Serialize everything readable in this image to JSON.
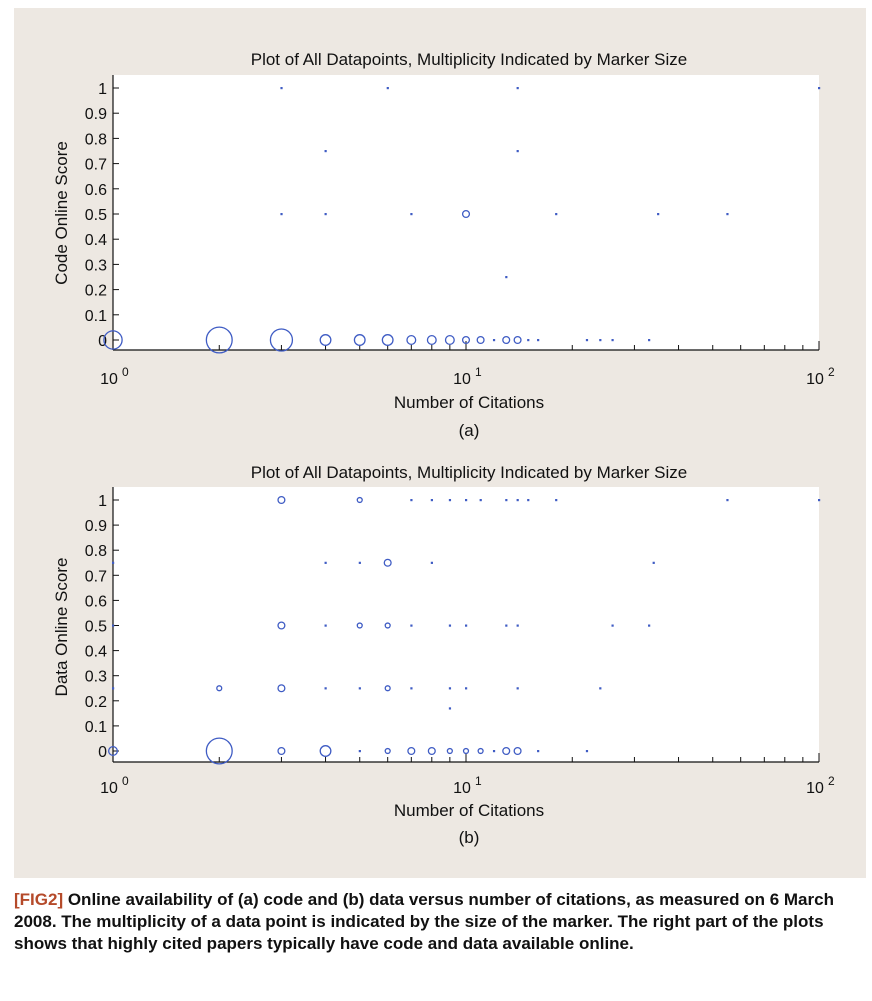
{
  "chart_data": [
    {
      "type": "scatter",
      "title": "Plot of All Datapoints, Multiplicity Indicated by Marker Size",
      "xlabel": "Number of Citations",
      "ylabel": "Code Online Score",
      "sublabel": "(a)",
      "xscale": "log",
      "xlim": [
        1,
        100
      ],
      "ylim": [
        0,
        1
      ],
      "yticks": [
        "0",
        "0.1",
        "0.2",
        "0.3",
        "0.4",
        "0.5",
        "0.6",
        "0.7",
        "0.8",
        "0.9",
        "1"
      ],
      "xticks": [
        {
          "base": "10",
          "exp": "0"
        },
        {
          "base": "10",
          "exp": "1"
        },
        {
          "base": "10",
          "exp": "2"
        }
      ],
      "grid": false,
      "marker_color": "#3f5cc4",
      "points": [
        {
          "x": 1,
          "y": 0,
          "m": 4
        },
        {
          "x": 2,
          "y": 0,
          "m": 6
        },
        {
          "x": 3,
          "y": 0,
          "m": 5
        },
        {
          "x": 4,
          "y": 0,
          "m": 2
        },
        {
          "x": 5,
          "y": 0,
          "m": 2
        },
        {
          "x": 6,
          "y": 0,
          "m": 2
        },
        {
          "x": 7,
          "y": 0,
          "m": 1.5
        },
        {
          "x": 8,
          "y": 0,
          "m": 1.5
        },
        {
          "x": 9,
          "y": 0,
          "m": 1.5
        },
        {
          "x": 10,
          "y": 0,
          "m": 1
        },
        {
          "x": 11,
          "y": 0,
          "m": 1
        },
        {
          "x": 12,
          "y": 0,
          "m": 0
        },
        {
          "x": 13,
          "y": 0,
          "m": 1
        },
        {
          "x": 14,
          "y": 0,
          "m": 1
        },
        {
          "x": 15,
          "y": 0,
          "m": 0
        },
        {
          "x": 16,
          "y": 0,
          "m": 0
        },
        {
          "x": 22,
          "y": 0,
          "m": 0
        },
        {
          "x": 24,
          "y": 0,
          "m": 0
        },
        {
          "x": 26,
          "y": 0,
          "m": 0
        },
        {
          "x": 33,
          "y": 0,
          "m": 0
        },
        {
          "x": 13,
          "y": 0.25,
          "m": 0
        },
        {
          "x": 3,
          "y": 0.5,
          "m": 0
        },
        {
          "x": 4,
          "y": 0.5,
          "m": 0
        },
        {
          "x": 7,
          "y": 0.5,
          "m": 0
        },
        {
          "x": 10,
          "y": 0.5,
          "m": 1
        },
        {
          "x": 18,
          "y": 0.5,
          "m": 0
        },
        {
          "x": 35,
          "y": 0.5,
          "m": 0
        },
        {
          "x": 55,
          "y": 0.5,
          "m": 0
        },
        {
          "x": 4,
          "y": 0.75,
          "m": 0
        },
        {
          "x": 14,
          "y": 0.75,
          "m": 0
        },
        {
          "x": 3,
          "y": 1,
          "m": 0
        },
        {
          "x": 6,
          "y": 1,
          "m": 0
        },
        {
          "x": 14,
          "y": 1,
          "m": 0
        },
        {
          "x": 100,
          "y": 1,
          "m": 0
        }
      ]
    },
    {
      "type": "scatter",
      "title": "Plot of All Datapoints, Multiplicity Indicated by Marker Size",
      "xlabel": "Number of Citations",
      "ylabel": "Data Online Score",
      "sublabel": "(b)",
      "xscale": "log",
      "xlim": [
        1,
        100
      ],
      "ylim": [
        0,
        1
      ],
      "yticks": [
        "0",
        "0.1",
        "0.2",
        "0.3",
        "0.4",
        "0.5",
        "0.6",
        "0.7",
        "0.8",
        "0.9",
        "1"
      ],
      "xticks": [
        {
          "base": "10",
          "exp": "0"
        },
        {
          "base": "10",
          "exp": "1"
        },
        {
          "base": "10",
          "exp": "2"
        }
      ],
      "grid": false,
      "marker_color": "#3f5cc4",
      "points": [
        {
          "x": 1,
          "y": 0,
          "m": 1.5
        },
        {
          "x": 2,
          "y": 0,
          "m": 6
        },
        {
          "x": 3,
          "y": 0,
          "m": 1
        },
        {
          "x": 4,
          "y": 0,
          "m": 2
        },
        {
          "x": 5,
          "y": 0,
          "m": 0
        },
        {
          "x": 6,
          "y": 0,
          "m": 0.5
        },
        {
          "x": 7,
          "y": 0,
          "m": 1
        },
        {
          "x": 8,
          "y": 0,
          "m": 1
        },
        {
          "x": 9,
          "y": 0,
          "m": 0.5
        },
        {
          "x": 10,
          "y": 0,
          "m": 0.5
        },
        {
          "x": 11,
          "y": 0,
          "m": 0.5
        },
        {
          "x": 12,
          "y": 0,
          "m": 0
        },
        {
          "x": 13,
          "y": 0,
          "m": 1
        },
        {
          "x": 14,
          "y": 0,
          "m": 1
        },
        {
          "x": 16,
          "y": 0,
          "m": 0
        },
        {
          "x": 22,
          "y": 0,
          "m": 0
        },
        {
          "x": 9,
          "y": 0.17,
          "m": 0
        },
        {
          "x": 1,
          "y": 0.25,
          "m": 0
        },
        {
          "x": 2,
          "y": 0.25,
          "m": 0.5
        },
        {
          "x": 3,
          "y": 0.25,
          "m": 1
        },
        {
          "x": 4,
          "y": 0.25,
          "m": 0
        },
        {
          "x": 5,
          "y": 0.25,
          "m": 0
        },
        {
          "x": 6,
          "y": 0.25,
          "m": 0.5
        },
        {
          "x": 7,
          "y": 0.25,
          "m": 0
        },
        {
          "x": 9,
          "y": 0.25,
          "m": 0
        },
        {
          "x": 10,
          "y": 0.25,
          "m": 0
        },
        {
          "x": 14,
          "y": 0.25,
          "m": 0
        },
        {
          "x": 24,
          "y": 0.25,
          "m": 0
        },
        {
          "x": 1,
          "y": 0.5,
          "m": 0
        },
        {
          "x": 3,
          "y": 0.5,
          "m": 1
        },
        {
          "x": 4,
          "y": 0.5,
          "m": 0
        },
        {
          "x": 5,
          "y": 0.5,
          "m": 0.5
        },
        {
          "x": 6,
          "y": 0.5,
          "m": 0.5
        },
        {
          "x": 7,
          "y": 0.5,
          "m": 0
        },
        {
          "x": 9,
          "y": 0.5,
          "m": 0
        },
        {
          "x": 10,
          "y": 0.5,
          "m": 0
        },
        {
          "x": 13,
          "y": 0.5,
          "m": 0
        },
        {
          "x": 14,
          "y": 0.5,
          "m": 0
        },
        {
          "x": 26,
          "y": 0.5,
          "m": 0
        },
        {
          "x": 33,
          "y": 0.5,
          "m": 0
        },
        {
          "x": 1,
          "y": 0.75,
          "m": 0
        },
        {
          "x": 4,
          "y": 0.75,
          "m": 0
        },
        {
          "x": 5,
          "y": 0.75,
          "m": 0
        },
        {
          "x": 6,
          "y": 0.75,
          "m": 1
        },
        {
          "x": 8,
          "y": 0.75,
          "m": 0
        },
        {
          "x": 34,
          "y": 0.75,
          "m": 0
        },
        {
          "x": 3,
          "y": 1,
          "m": 1
        },
        {
          "x": 5,
          "y": 1,
          "m": 0.5
        },
        {
          "x": 7,
          "y": 1,
          "m": 0
        },
        {
          "x": 8,
          "y": 1,
          "m": 0
        },
        {
          "x": 9,
          "y": 1,
          "m": 0
        },
        {
          "x": 10,
          "y": 1,
          "m": 0
        },
        {
          "x": 11,
          "y": 1,
          "m": 0
        },
        {
          "x": 13,
          "y": 1,
          "m": 0
        },
        {
          "x": 14,
          "y": 1,
          "m": 0
        },
        {
          "x": 15,
          "y": 1,
          "m": 0
        },
        {
          "x": 18,
          "y": 1,
          "m": 0
        },
        {
          "x": 55,
          "y": 1,
          "m": 0
        },
        {
          "x": 100,
          "y": 1,
          "m": 0
        }
      ]
    }
  ],
  "caption": {
    "tag": "[FIG2]",
    "text": " Online availability of (a) code and (b) data versus number of citations, as measured on 6 March 2008. The multiplicity of a data point is indicated by the size of the marker. The right part of the plots shows that highly cited papers typically have code and data available online."
  }
}
